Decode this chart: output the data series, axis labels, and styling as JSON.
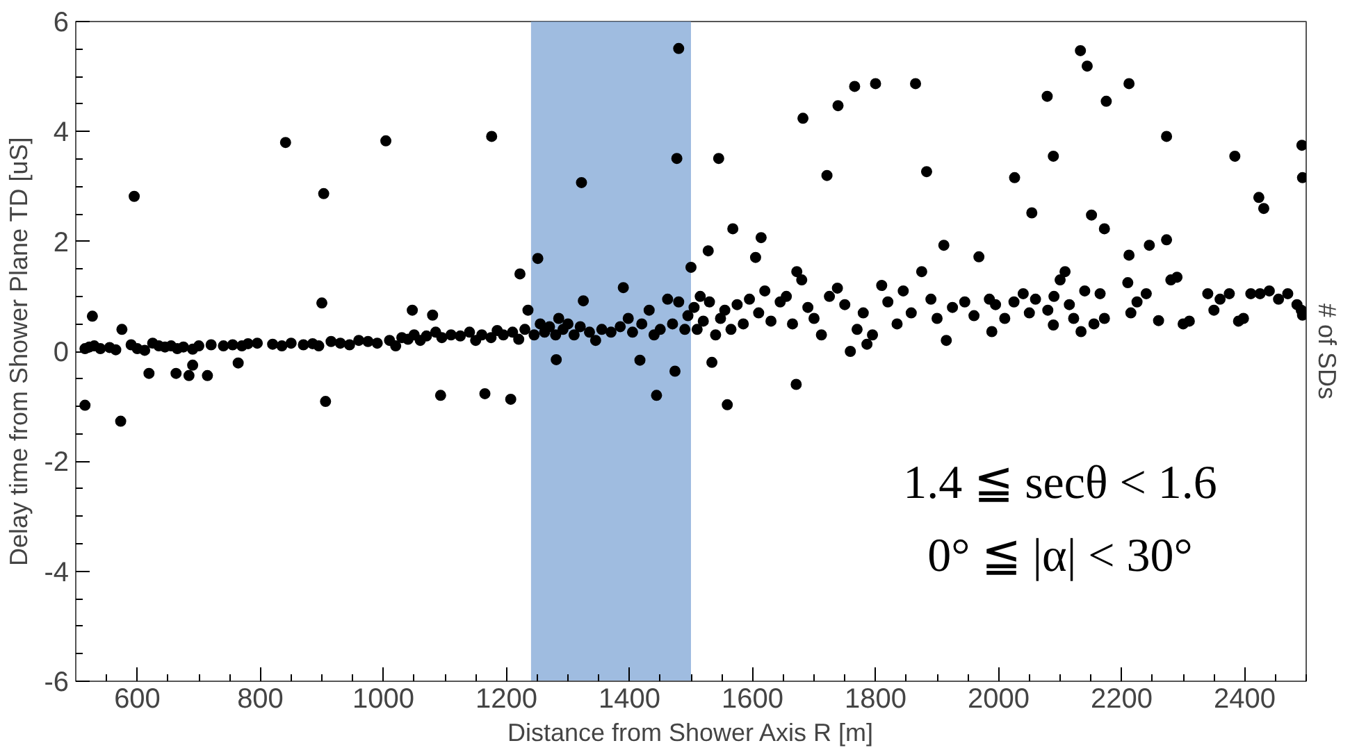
{
  "chart_data": {
    "type": "scatter",
    "xlabel": "Distance from Shower Axis R [m]",
    "ylabel": "Delay time from Shower Plane TD [uS]",
    "y2label": "# of SDs",
    "annotations": [
      "1.4 ≦ secθ < 1.6",
      "0° ≦ |α| < 30°"
    ],
    "xlim": [
      500,
      2500
    ],
    "xticks": [
      600,
      800,
      1000,
      1200,
      1400,
      1600,
      1800,
      2000,
      2200,
      2400
    ],
    "ylim": [
      -6,
      6
    ],
    "yticks": [
      -6,
      -4,
      -2,
      0,
      2,
      4,
      6
    ],
    "grid": false,
    "marker": "circle",
    "bands": [
      {
        "axis": "x",
        "from": 1240,
        "to": 1500,
        "color": "#7fa6d6"
      }
    ],
    "series": [
      {
        "color": "#000000",
        "x": [
          515,
          595,
          573,
          575,
          527,
          841,
          1004,
          1176,
          903,
          900,
          906,
          1093,
          1165,
          1207,
          1222,
          1047,
          1080,
          619,
          663,
          684,
          690,
          714,
          764,
          1480,
          1477,
          1322,
          1251,
          1545,
          1568,
          1614,
          1605,
          1528,
          1500,
          1682,
          1739,
          1766,
          1800,
          1865,
          1721,
          1883,
          1559,
          1671,
          1534,
          1444,
          1474,
          1417,
          1281,
          1759,
          1786,
          1915,
          1911,
          1968,
          1672,
          1390,
          1325,
          2133,
          2144,
          2079,
          2175,
          2212,
          2273,
          2384,
          2493,
          2494,
          2026,
          2089,
          2054,
          2151,
          2172,
          2423,
          2431,
          2273,
          2245,
          2212,
          1989,
          2260,
          2134,
          2089,
          2398,
          2494,
          515,
          522,
          530,
          540,
          555,
          565,
          590,
          600,
          612,
          625,
          635,
          645,
          655,
          665,
          675,
          690,
          700,
          720,
          740,
          755,
          770,
          780,
          795,
          820,
          835,
          850,
          870,
          885,
          895,
          915,
          930,
          945,
          960,
          975,
          990,
          1010,
          1020,
          1030,
          1040,
          1050,
          1060,
          1070,
          1085,
          1095,
          1110,
          1125,
          1140,
          1150,
          1160,
          1175,
          1185,
          1195,
          1210,
          1220,
          1230,
          1235,
          1245,
          1255,
          1262,
          1270,
          1280,
          1285,
          1292,
          1300,
          1310,
          1320,
          1335,
          1345,
          1355,
          1370,
          1385,
          1398,
          1405,
          1420,
          1432,
          1440,
          1450,
          1462,
          1470,
          1480,
          1490,
          1495,
          1505,
          1510,
          1515,
          1520,
          1530,
          1540,
          1548,
          1555,
          1565,
          1575,
          1585,
          1595,
          1610,
          1620,
          1630,
          1645,
          1655,
          1665,
          1680,
          1690,
          1700,
          1712,
          1725,
          1738,
          1750,
          1770,
          1780,
          1795,
          1810,
          1820,
          1835,
          1845,
          1858,
          1875,
          1890,
          1900,
          1925,
          1945,
          1960,
          1985,
          1995,
          2010,
          2025,
          2040,
          2050,
          2060,
          2080,
          2090,
          2100,
          2108,
          2115,
          2122,
          2140,
          2155,
          2165,
          2172,
          2210,
          2215,
          2225,
          2240,
          2280,
          2290,
          2300,
          2310,
          2340,
          2350,
          2360,
          2375,
          2390,
          2410,
          2425,
          2440,
          2455,
          2470,
          2485,
          2492
        ],
        "values": [
          -0.98,
          2.82,
          -1.27,
          0.4,
          0.64,
          3.8,
          3.83,
          3.91,
          2.87,
          0.88,
          -0.91,
          -0.8,
          -0.77,
          -0.87,
          1.41,
          0.75,
          0.66,
          -0.4,
          -0.4,
          -0.44,
          -0.25,
          -0.44,
          -0.21,
          5.51,
          3.51,
          3.07,
          1.69,
          3.51,
          2.23,
          2.07,
          1.71,
          1.83,
          1.53,
          4.24,
          4.47,
          4.82,
          4.87,
          4.87,
          3.2,
          3.27,
          -0.97,
          -0.6,
          -0.2,
          -0.8,
          -0.36,
          -0.16,
          -0.15,
          0,
          0.13,
          0.2,
          1.93,
          1.72,
          1.45,
          1.16,
          0.92,
          5.47,
          5.19,
          4.64,
          4.55,
          4.87,
          3.91,
          3.55,
          3.75,
          3.16,
          3.16,
          3.55,
          2.52,
          2.48,
          2.23,
          2.8,
          2.6,
          2.03,
          1.93,
          1.75,
          0.36,
          0.56,
          0.36,
          0.48,
          0.6,
          0.66,
          0.05,
          0.08,
          0.1,
          0.05,
          0.07,
          0.03,
          0.12,
          0.05,
          0.02,
          0.15,
          0.1,
          0.08,
          0.1,
          0.05,
          0.08,
          0.04,
          0.1,
          0.12,
          0.1,
          0.12,
          0.1,
          0.14,
          0.15,
          0.13,
          0.1,
          0.15,
          0.12,
          0.14,
          0.1,
          0.18,
          0.15,
          0.12,
          0.2,
          0.18,
          0.15,
          0.2,
          0.1,
          0.25,
          0.22,
          0.3,
          0.2,
          0.28,
          0.35,
          0.25,
          0.3,
          0.28,
          0.35,
          0.2,
          0.3,
          0.25,
          0.38,
          0.3,
          0.35,
          0.22,
          0.4,
          0.75,
          0.3,
          0.5,
          0.35,
          0.45,
          0.3,
          0.6,
          0.4,
          0.5,
          0.3,
          0.45,
          0.35,
          0.2,
          0.4,
          0.35,
          0.45,
          0.6,
          0.35,
          0.5,
          0.75,
          0.3,
          0.4,
          0.95,
          0.5,
          0.9,
          0.4,
          0.65,
          0.8,
          0.4,
          1.0,
          0.55,
          0.9,
          0.3,
          0.6,
          0.75,
          0.4,
          0.85,
          0.5,
          0.95,
          0.7,
          1.1,
          0.55,
          0.9,
          1.0,
          0.5,
          1.3,
          0.8,
          0.6,
          0.3,
          1.0,
          1.15,
          0.85,
          0.4,
          0.7,
          0.3,
          1.2,
          0.9,
          0.5,
          1.1,
          0.7,
          1.45,
          0.95,
          0.6,
          0.8,
          0.9,
          0.65,
          0.95,
          0.85,
          0.6,
          0.9,
          1.05,
          0.7,
          0.95,
          0.75,
          1.0,
          1.3,
          1.45,
          0.85,
          0.6,
          1.1,
          0.5,
          1.05,
          0.6,
          1.25,
          0.7,
          0.9,
          1.05,
          1.3,
          1.35,
          0.5,
          0.55,
          1.05,
          0.75,
          0.95,
          1.05,
          0.55,
          1.05,
          1.05,
          1.1,
          0.95,
          1.05,
          0.85,
          0.75
        ]
      }
    ]
  }
}
